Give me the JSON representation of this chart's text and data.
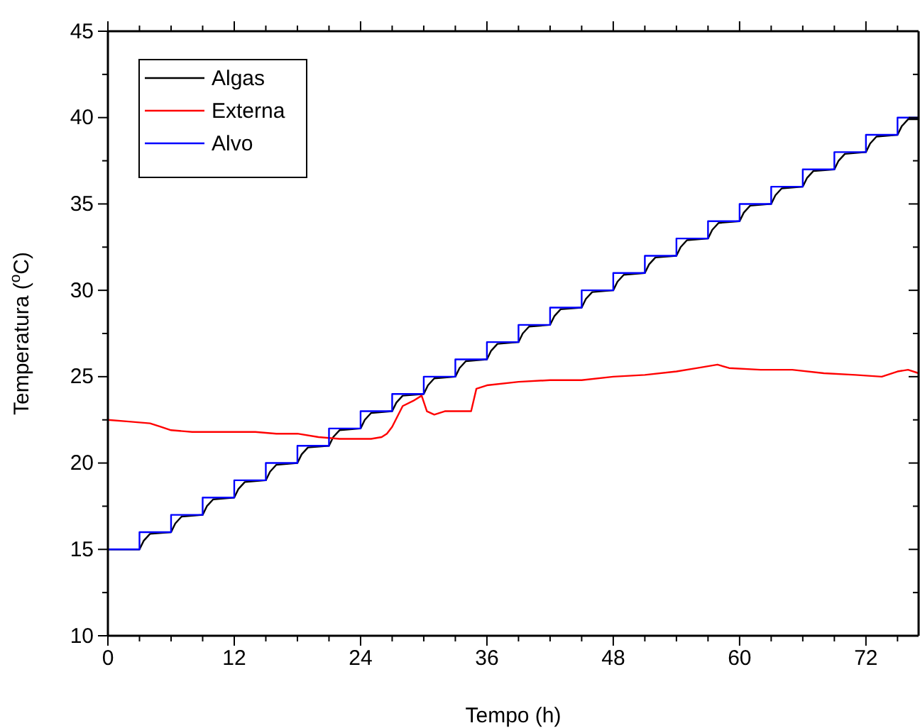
{
  "chart_data": {
    "type": "line",
    "xlabel": "Tempo (h)",
    "ylabel": "Temperatura ($^{o}$C)",
    "xlim": [
      0,
      77
    ],
    "ylim": [
      10,
      45
    ],
    "xticks": [
      0,
      12,
      24,
      36,
      48,
      60,
      72
    ],
    "yticks": [
      10,
      15,
      20,
      25,
      30,
      35,
      40,
      45
    ],
    "grid": false,
    "legend": "top left",
    "marker": "none",
    "line_style": "solid",
    "series": [
      {
        "name": "Algas",
        "color": "#000000",
        "x": [
          0,
          3,
          3.4,
          4,
          6,
          6.4,
          7,
          9,
          9.4,
          10,
          12,
          12.4,
          13,
          15,
          15.4,
          16,
          18,
          18.4,
          19,
          21,
          21.4,
          22,
          24,
          24.4,
          25,
          27,
          27.4,
          28,
          30,
          30.4,
          31,
          33,
          33.4,
          34,
          36,
          36.4,
          37,
          39,
          39.4,
          40,
          42,
          42.4,
          43,
          45,
          45.4,
          46,
          48,
          48.4,
          49,
          51,
          51.4,
          52,
          54,
          54.4,
          55,
          57,
          57.4,
          58,
          60,
          60.4,
          61,
          63,
          63.4,
          64,
          66,
          66.4,
          67,
          69,
          69.4,
          70,
          72,
          72.4,
          73,
          75,
          75.4,
          76,
          77
        ],
        "values": [
          15,
          15,
          15.5,
          15.9,
          16,
          16.5,
          16.9,
          17,
          17.5,
          17.9,
          18,
          18.5,
          18.9,
          19,
          19.5,
          19.9,
          20,
          20.5,
          20.9,
          21,
          21.5,
          21.9,
          22,
          22.5,
          22.9,
          23,
          23.5,
          23.9,
          24,
          24.5,
          24.9,
          25,
          25.5,
          25.9,
          26,
          26.5,
          26.9,
          27,
          27.5,
          27.9,
          28,
          28.5,
          28.9,
          29,
          29.5,
          29.9,
          30,
          30.5,
          30.9,
          31,
          31.5,
          31.9,
          32,
          32.5,
          32.9,
          33,
          33.5,
          33.9,
          34,
          34.5,
          34.9,
          35,
          35.5,
          35.9,
          36,
          36.5,
          36.9,
          37,
          37.5,
          37.9,
          38,
          38.5,
          38.9,
          39,
          39.5,
          39.9,
          39.9
        ]
      },
      {
        "name": "Externa",
        "color": "#ff0000",
        "x": [
          0,
          2,
          4,
          5,
          6,
          8,
          11,
          14,
          16,
          18,
          20,
          22,
          24,
          25,
          26,
          26.5,
          27,
          28,
          29,
          29.8,
          30.3,
          31,
          32,
          34.5,
          35,
          36,
          39,
          42,
          45,
          48,
          51,
          54,
          56,
          57.9,
          59,
          62,
          65,
          68,
          71,
          73.5,
          75,
          76,
          77
        ],
        "values": [
          22.5,
          22.4,
          22.3,
          22.1,
          21.9,
          21.8,
          21.8,
          21.8,
          21.7,
          21.7,
          21.5,
          21.4,
          21.4,
          21.4,
          21.5,
          21.7,
          22.1,
          23.3,
          23.6,
          23.9,
          23.0,
          22.8,
          23.0,
          23.0,
          24.3,
          24.5,
          24.7,
          24.8,
          24.8,
          25.0,
          25.1,
          25.3,
          25.5,
          25.7,
          25.5,
          25.4,
          25.4,
          25.2,
          25.1,
          25.0,
          25.3,
          25.4,
          25.2
        ]
      },
      {
        "name": "Alvo",
        "color": "#0000ff",
        "type": "step",
        "x": [
          0,
          3,
          6,
          9,
          12,
          15,
          18,
          21,
          24,
          27,
          30,
          33,
          36,
          39,
          42,
          45,
          48,
          51,
          54,
          57,
          60,
          63,
          66,
          69,
          72,
          75,
          77
        ],
        "values": [
          15,
          16,
          17,
          18,
          19,
          20,
          21,
          22,
          23,
          24,
          25,
          26,
          27,
          28,
          29,
          30,
          31,
          32,
          33,
          34,
          35,
          36,
          37,
          38,
          39,
          40,
          40
        ]
      }
    ]
  }
}
